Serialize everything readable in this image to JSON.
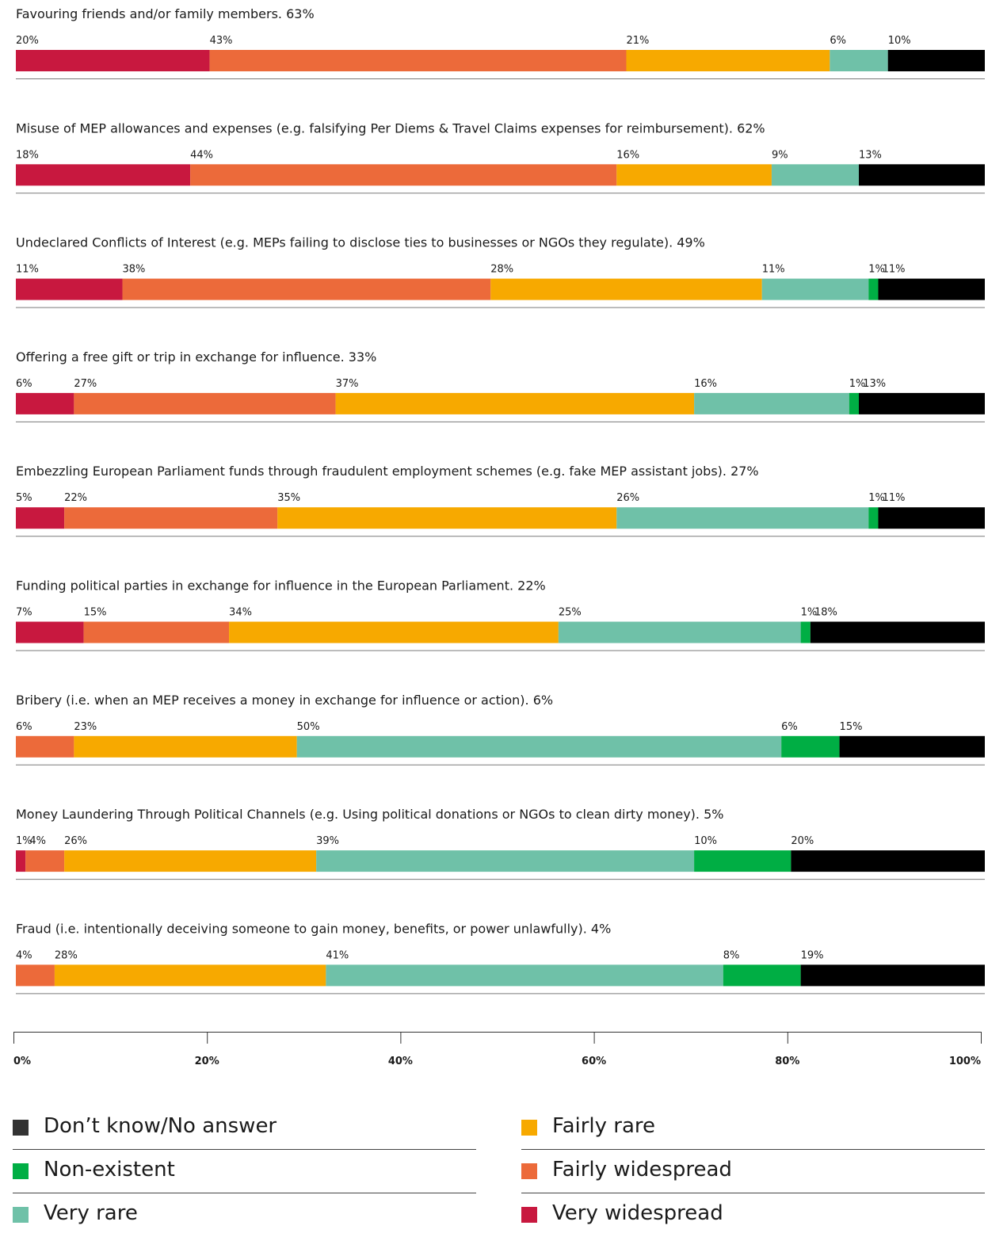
{
  "chart_data": {
    "type": "bar",
    "orientation": "horizontal",
    "stacked": true,
    "xlim": [
      0,
      100
    ],
    "x_ticks": [
      "0%",
      "20%",
      "40%",
      "60%",
      "80%",
      "100%"
    ],
    "legend_position": "bottom",
    "categories": [
      "Favouring friends and/or family members. 63%",
      "Misuse of MEP allowances and expenses (e.g. falsifying Per Diems & Travel Claims expenses for reimbursement). 62%",
      "Undeclared Conflicts of Interest (e.g. MEPs failing to disclose ties to businesses or NGOs they regulate). 49%",
      "Offering a free gift or trip in exchange for influence. 33%",
      "Embezzling European Parliament funds through fraudulent employment schemes (e.g. fake MEP assistant jobs). 27%",
      "Funding political parties in exchange for influence in the European Parliament. 22%",
      "Bribery (i.e. when an MEP receives a money in exchange for influence or action). 6%",
      "Money Laundering Through Political Channels (e.g. Using political donations or NGOs to clean dirty money). 5%",
      "Fraud (i.e. intentionally deceiving someone to gain money, benefits, or power unlawfully). 4%"
    ],
    "series": [
      {
        "name": "Very widespread",
        "color": "#c8183f",
        "values": [
          20,
          18,
          11,
          6,
          5,
          7,
          0,
          1,
          0
        ]
      },
      {
        "name": "Fairly widespread",
        "color": "#ec6a3a",
        "values": [
          43,
          44,
          38,
          27,
          22,
          15,
          6,
          4,
          4
        ]
      },
      {
        "name": "Fairly rare",
        "color": "#f7a900",
        "values": [
          21,
          16,
          28,
          37,
          35,
          34,
          23,
          26,
          28
        ]
      },
      {
        "name": "Very rare",
        "color": "#6fc1a8",
        "values": [
          6,
          9,
          11,
          16,
          26,
          25,
          50,
          39,
          41
        ]
      },
      {
        "name": "Non-existent",
        "color": "#00ae44",
        "values": [
          0,
          0,
          1,
          1,
          1,
          1,
          6,
          10,
          8
        ]
      },
      {
        "name": "Don’t know/No answer",
        "color": "#000000",
        "values": [
          10,
          13,
          11,
          13,
          11,
          18,
          15,
          20,
          19
        ]
      }
    ],
    "legend": [
      {
        "label": "Don’t know/No answer",
        "color": "#333333"
      },
      {
        "label": "Non-existent",
        "color": "#00ae44"
      },
      {
        "label": "Very rare",
        "color": "#6fc1a8"
      },
      {
        "label": "Fairly rare",
        "color": "#f7a900"
      },
      {
        "label": "Fairly widespread",
        "color": "#ec6a3a"
      },
      {
        "label": "Very widespread",
        "color": "#c8183f"
      }
    ]
  }
}
